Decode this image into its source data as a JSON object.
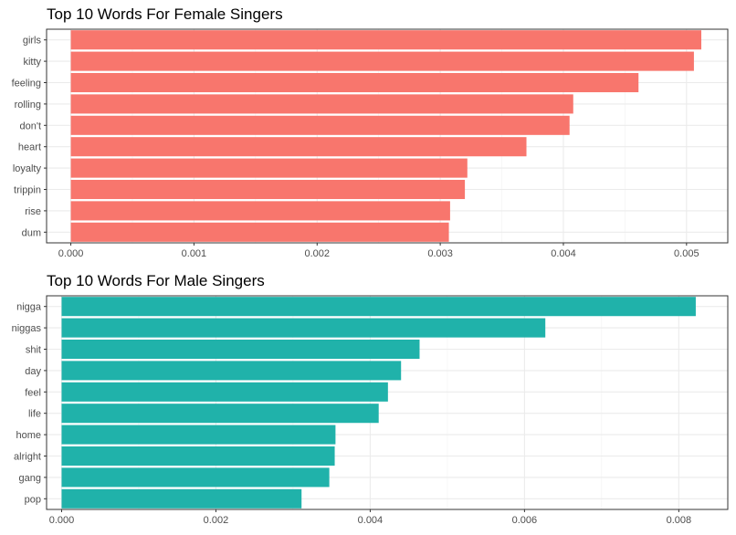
{
  "chart_data": [
    {
      "type": "bar",
      "orientation": "horizontal",
      "title": "Top 10 Words For Female Singers",
      "xlabel": "",
      "ylabel": "",
      "categories": [
        "girls",
        "kitty",
        "feeling",
        "rolling",
        "don't",
        "heart",
        "loyalty",
        "trippin",
        "rise",
        "dum"
      ],
      "values": [
        0.00512,
        0.00506,
        0.00461,
        0.00408,
        0.00405,
        0.0037,
        0.00322,
        0.0032,
        0.00308,
        0.00307
      ],
      "xticks": [
        "0.000",
        "0.001",
        "0.002",
        "0.003",
        "0.004",
        "0.005"
      ],
      "xlim": [
        -0.000197,
        0.005335
      ],
      "color": "#F8766D",
      "grid": true
    },
    {
      "type": "bar",
      "orientation": "horizontal",
      "title": "Top 10 Words For Male Singers",
      "xlabel": "",
      "ylabel": "",
      "categories": [
        "nigga",
        "niggas",
        "shit",
        "day",
        "feel",
        "life",
        "home",
        "alright",
        "gang",
        "pop"
      ],
      "values": [
        0.00822,
        0.00627,
        0.00464,
        0.0044,
        0.00423,
        0.00411,
        0.00355,
        0.00354,
        0.00347,
        0.00311
      ],
      "xticks": [
        "0.000",
        "0.002",
        "0.004",
        "0.006",
        "0.008"
      ],
      "xlim": [
        -0.000195,
        0.008635
      ],
      "color": "#20B2AA",
      "grid": true
    }
  ]
}
